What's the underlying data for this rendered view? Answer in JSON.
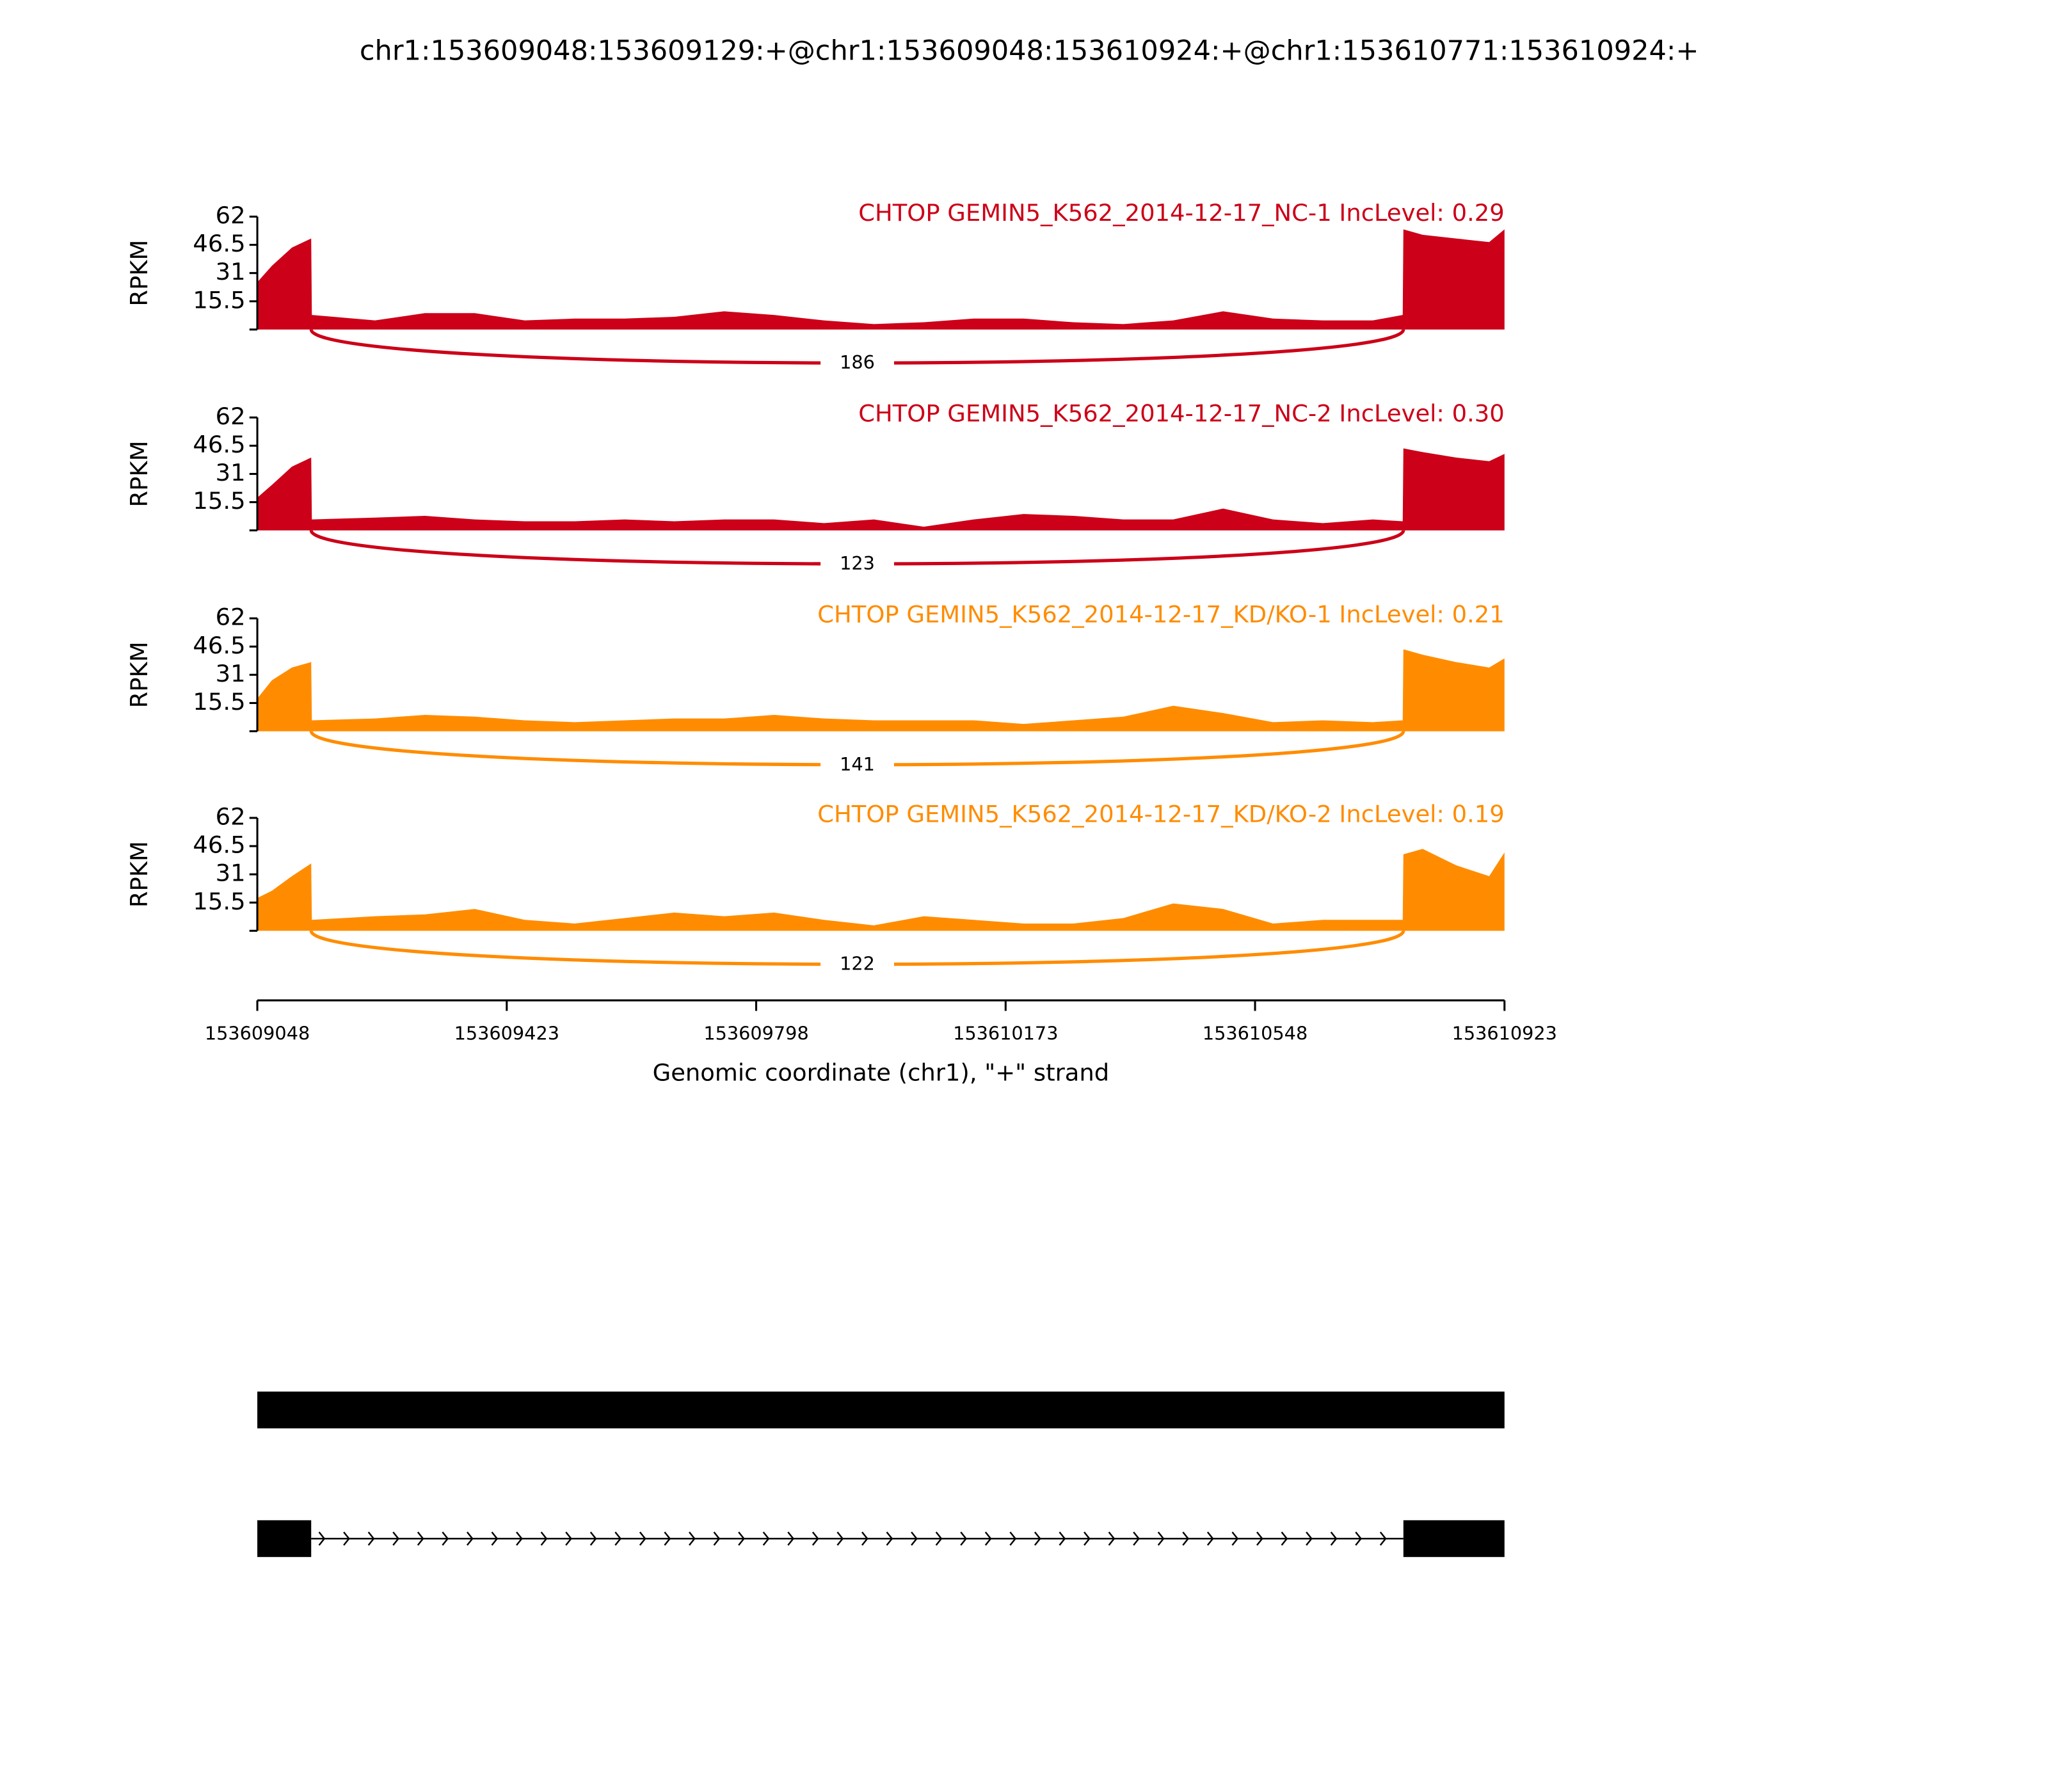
{
  "title": "chr1:153609048:153609129:+@chr1:153609048:153610924:+@chr1:153610771:153610924:+",
  "xlabel": "Genomic coordinate (chr1), \"+\" strand",
  "xlim": [
    153609048,
    153610923
  ],
  "xticks": [
    153609048,
    153609423,
    153609798,
    153610173,
    153610548,
    153610923
  ],
  "chart_data": [
    {
      "type": "area",
      "title": "CHTOP GEMIN5_K562_2014-12-17_NC-1 IncLevel: 0.29",
      "ylabel": "RPKM",
      "color": "#cc0018",
      "ylim": [
        0,
        62
      ],
      "yticks": [
        15.5,
        31,
        46.5,
        62
      ],
      "x": [
        153609048,
        153609070,
        153609100,
        153609129,
        153609130,
        153609225,
        153609300,
        153609375,
        153609450,
        153609525,
        153609600,
        153609675,
        153609750,
        153609825,
        153609900,
        153609975,
        153610050,
        153610125,
        153610200,
        153610275,
        153610350,
        153610425,
        153610500,
        153610575,
        153610650,
        153610725,
        153610770,
        153610771,
        153610800,
        153610850,
        153610900,
        153610923
      ],
      "values": [
        26,
        35,
        45,
        50,
        8,
        5,
        9,
        9,
        5,
        6,
        6,
        7,
        10,
        8,
        5,
        3,
        4,
        6,
        6,
        4,
        3,
        5,
        10,
        6,
        5,
        5,
        8,
        55,
        52,
        50,
        48,
        55
      ],
      "junctions": [
        {
          "from": 153609129,
          "to": 153610771,
          "count": 186
        }
      ]
    },
    {
      "type": "area",
      "title": "CHTOP GEMIN5_K562_2014-12-17_NC-2 IncLevel: 0.30",
      "ylabel": "RPKM",
      "color": "#cc0018",
      "ylim": [
        0,
        62
      ],
      "yticks": [
        15.5,
        31,
        46.5,
        62
      ],
      "x": [
        153609048,
        153609070,
        153609100,
        153609129,
        153609130,
        153609225,
        153609300,
        153609375,
        153609450,
        153609525,
        153609600,
        153609675,
        153609750,
        153609825,
        153609900,
        153609975,
        153610050,
        153610125,
        153610200,
        153610275,
        153610350,
        153610425,
        153610500,
        153610575,
        153610650,
        153610725,
        153610770,
        153610771,
        153610800,
        153610850,
        153610900,
        153610923
      ],
      "values": [
        18,
        25,
        35,
        40,
        6,
        7,
        8,
        6,
        5,
        5,
        6,
        5,
        6,
        6,
        4,
        6,
        2,
        6,
        9,
        8,
        6,
        6,
        12,
        6,
        4,
        6,
        5,
        45,
        43,
        40,
        38,
        42
      ],
      "junctions": [
        {
          "from": 153609129,
          "to": 153610771,
          "count": 123
        }
      ]
    },
    {
      "type": "area",
      "title": "CHTOP GEMIN5_K562_2014-12-17_KD/KO-1 IncLevel: 0.21",
      "ylabel": "RPKM",
      "color": "#ff8c00",
      "ylim": [
        0,
        62
      ],
      "yticks": [
        15.5,
        31,
        46.5,
        62
      ],
      "x": [
        153609048,
        153609070,
        153609100,
        153609129,
        153609130,
        153609225,
        153609300,
        153609375,
        153609450,
        153609525,
        153609600,
        153609675,
        153609750,
        153609825,
        153609900,
        153609975,
        153610050,
        153610125,
        153610200,
        153610275,
        153610350,
        153610425,
        153610500,
        153610575,
        153610650,
        153610725,
        153610770,
        153610771,
        153610800,
        153610850,
        153610900,
        153610923
      ],
      "values": [
        18,
        28,
        35,
        38,
        6,
        7,
        9,
        8,
        6,
        5,
        6,
        7,
        7,
        9,
        7,
        6,
        6,
        6,
        4,
        6,
        8,
        14,
        10,
        5,
        6,
        5,
        6,
        45,
        42,
        38,
        35,
        40
      ],
      "junctions": [
        {
          "from": 153609129,
          "to": 153610771,
          "count": 141
        }
      ]
    },
    {
      "type": "area",
      "title": "CHTOP GEMIN5_K562_2014-12-17_KD/KO-2 IncLevel: 0.19",
      "ylabel": "RPKM",
      "color": "#ff8c00",
      "ylim": [
        0,
        62
      ],
      "yticks": [
        15.5,
        31,
        46.5,
        62
      ],
      "x": [
        153609048,
        153609070,
        153609100,
        153609129,
        153609130,
        153609225,
        153609300,
        153609375,
        153609450,
        153609525,
        153609600,
        153609675,
        153609750,
        153609825,
        153609900,
        153609975,
        153610050,
        153610125,
        153610200,
        153610275,
        153610350,
        153610425,
        153610500,
        153610575,
        153610650,
        153610725,
        153610770,
        153610771,
        153610800,
        153610850,
        153610900,
        153610923
      ],
      "values": [
        18,
        22,
        30,
        37,
        6,
        8,
        9,
        12,
        6,
        4,
        7,
        10,
        8,
        10,
        6,
        3,
        8,
        6,
        4,
        4,
        7,
        15,
        12,
        4,
        6,
        6,
        6,
        42,
        45,
        36,
        30,
        43
      ],
      "junctions": [
        {
          "from": 153609129,
          "to": 153610771,
          "count": 122
        }
      ]
    }
  ],
  "gene_models": [
    {
      "exons": [
        [
          153609048,
          153610923
        ]
      ]
    },
    {
      "exons": [
        [
          153609048,
          153609129
        ],
        [
          153610771,
          153610923
        ]
      ]
    }
  ]
}
